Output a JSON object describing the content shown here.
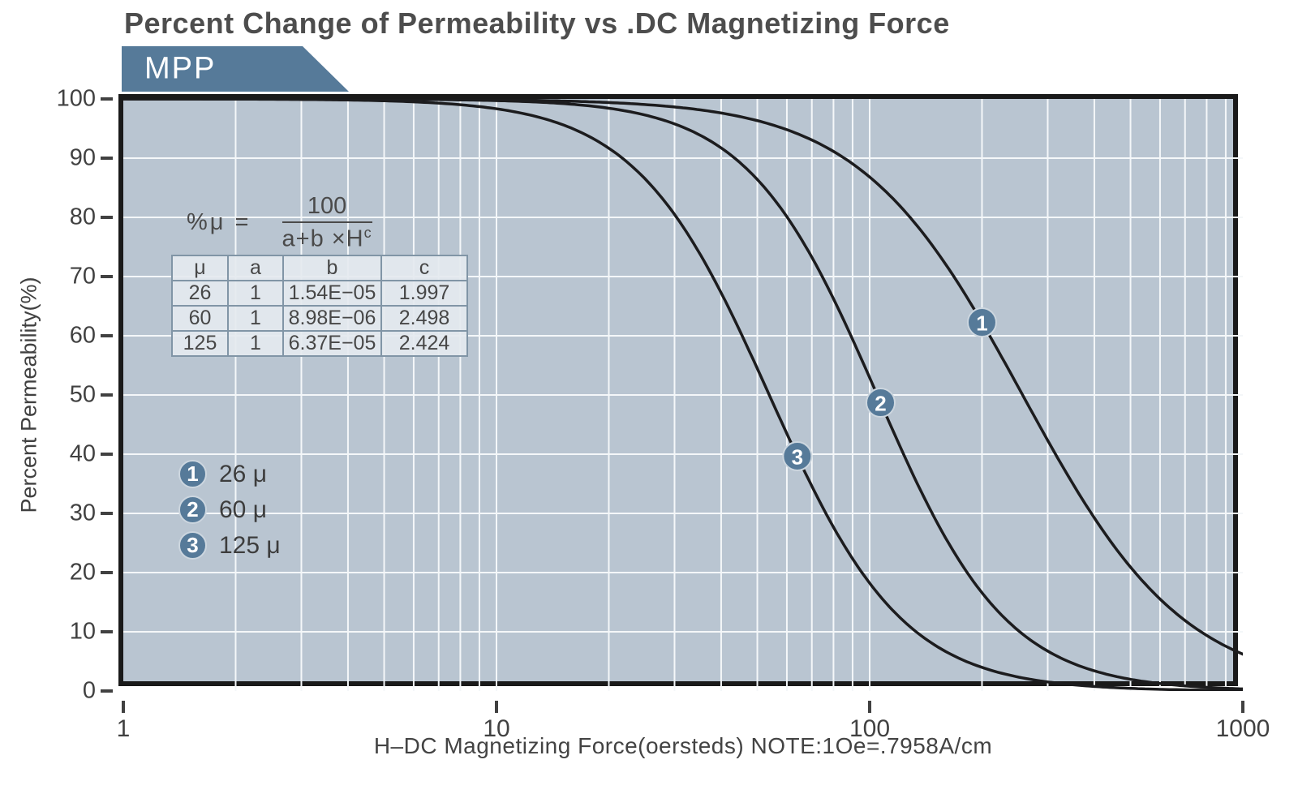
{
  "page": {
    "title": "Percent Change of Permeability vs .DC Magnetizing Force",
    "badge_label": "MPP"
  },
  "colors": {
    "accent": "#567a99",
    "plot_background": "#b9c5d1",
    "gridline": "#f4f7f9",
    "curve": "#1c1c1e",
    "frame": "#1a1a1a",
    "marker_ring": "#ccd6df",
    "text_dark": "#4a4a4a"
  },
  "formula": {
    "lhs": "%μ =",
    "numerator": "100",
    "denominator": "a+b ×H",
    "exponent": "c"
  },
  "coefficients_table": {
    "headers": [
      "μ",
      "a",
      "b",
      "c"
    ],
    "rows": [
      [
        "26",
        "1",
        "1.54E−05",
        "1.997"
      ],
      [
        "60",
        "1",
        "8.98E−06",
        "2.498"
      ],
      [
        "125",
        "1",
        "6.37E−05",
        "2.424"
      ]
    ]
  },
  "legend": {
    "items": [
      {
        "marker": "1",
        "label": "26 μ"
      },
      {
        "marker": "2",
        "label": "60 μ"
      },
      {
        "marker": "3",
        "label": "125 μ"
      }
    ]
  },
  "chart_data": {
    "type": "line",
    "title": "Percent Change of Permeability vs .DC Magnetizing Force",
    "xlabel": "H–DC Magnetizing Force(oersteds) NOTE:1Oe=.7958A/cm",
    "ylabel": "Percent Permeability(%)",
    "x_scale": "log",
    "xlim": [
      1,
      1000
    ],
    "ylim": [
      0,
      100
    ],
    "x_ticks": [
      1,
      10,
      100,
      1000
    ],
    "y_ticks": [
      0,
      10,
      20,
      30,
      40,
      50,
      60,
      70,
      80,
      90,
      100
    ],
    "grid": "white gridlines: log-decade minors on x (2-9 each decade), every 10% on y",
    "formula": "%μ = 100 / (a + b × H^c)",
    "series": [
      {
        "number": "1",
        "name": "26 μ",
        "a": 1,
        "b": 1.54e-05,
        "c": 1.997,
        "marker_H": 200,
        "points_H": [
          1,
          10,
          30,
          100,
          300,
          1000
        ],
        "points_pct": [
          100,
          99.8,
          98.6,
          86.8,
          42.3,
          6.2
        ]
      },
      {
        "number": "2",
        "name": "60 μ",
        "a": 1,
        "b": 8.98e-06,
        "c": 2.498,
        "marker_H": 107,
        "points_H": [
          1,
          10,
          30,
          100,
          300,
          1000
        ],
        "points_pct": [
          100,
          99.7,
          95.8,
          52.9,
          6.7,
          0.4
        ]
      },
      {
        "number": "3",
        "name": "125 μ",
        "a": 1,
        "b": 6.37e-05,
        "c": 2.424,
        "marker_H": 64,
        "points_H": [
          1,
          10,
          30,
          100,
          300,
          1000
        ],
        "points_pct": [
          100,
          98.3,
          80.5,
          18.2,
          1.5,
          0.1
        ]
      }
    ]
  }
}
